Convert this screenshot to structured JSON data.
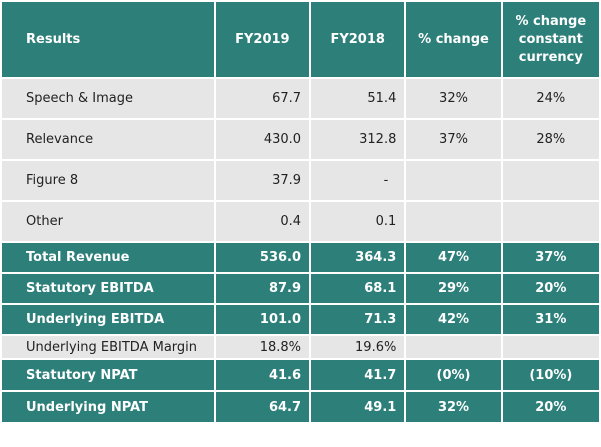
{
  "header": {
    "results": "Results",
    "fy2019": "FY2019",
    "fy2018": "FY2018",
    "pct_change": "% change",
    "pct_change_cc": "% change constant currency"
  },
  "rows": [
    {
      "label": "Speech & Image",
      "fy2019": "67.7",
      "fy2018": "51.4",
      "pct": "32%",
      "pct_cc": "24%"
    },
    {
      "label": "Relevance",
      "fy2019": "430.0",
      "fy2018": "312.8",
      "pct": "37%",
      "pct_cc": "28%"
    },
    {
      "label": "Figure 8",
      "fy2019": "37.9",
      "fy2018": "-",
      "pct": "",
      "pct_cc": ""
    },
    {
      "label": "Other",
      "fy2019": "0.4",
      "fy2018": "0.1",
      "pct": "",
      "pct_cc": ""
    },
    {
      "label": "Total Revenue",
      "fy2019": "536.0",
      "fy2018": "364.3",
      "pct": "47%",
      "pct_cc": "37%"
    },
    {
      "label": "Statutory EBITDA",
      "fy2019": "87.9",
      "fy2018": "68.1",
      "pct": "29%",
      "pct_cc": "20%"
    },
    {
      "label": "Underlying EBITDA",
      "fy2019": "101.0",
      "fy2018": "71.3",
      "pct": "42%",
      "pct_cc": "31%"
    },
    {
      "label": "Underlying EBITDA Margin",
      "fy2019": "18.8%",
      "fy2018": "19.6%",
      "pct": "",
      "pct_cc": ""
    },
    {
      "label": "Statutory NPAT",
      "fy2019": "41.6",
      "fy2018": "41.7",
      "pct": "(0%)",
      "pct_cc": "(10%)"
    },
    {
      "label": "Underlying NPAT",
      "fy2019": "64.7",
      "fy2018": "49.1",
      "pct": "32%",
      "pct_cc": "20%"
    }
  ]
}
